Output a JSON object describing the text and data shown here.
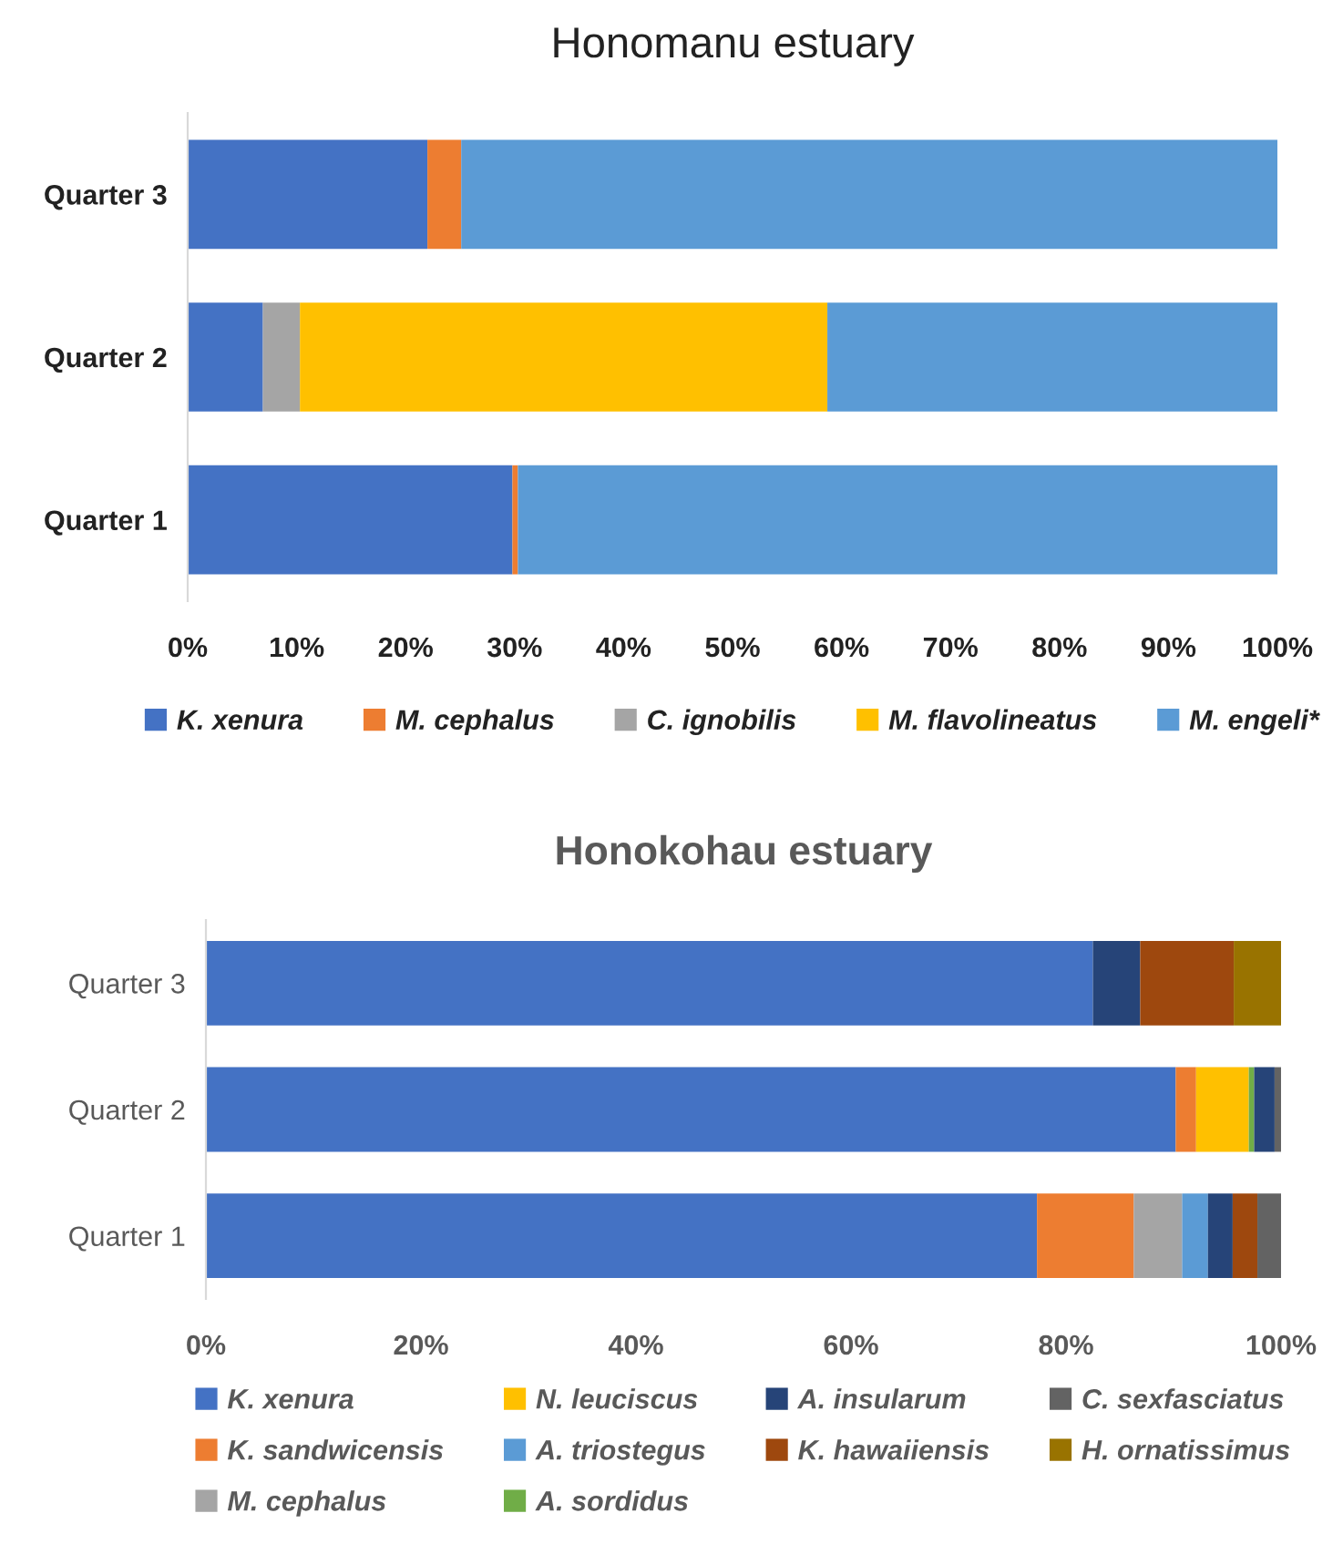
{
  "chart_data": [
    {
      "type": "bar",
      "title": "Honomanu estuary",
      "orientation": "horizontal",
      "stacked": true,
      "categories": [
        "Quarter 3",
        "Quarter 2",
        "Quarter 1"
      ],
      "series": [
        {
          "name": "K. xenura",
          "color": "#4472c4",
          "values": [
            22.0,
            6.9,
            29.8
          ]
        },
        {
          "name": "M. cephalus",
          "color": "#ed7d31",
          "values": [
            3.1,
            0,
            0.5
          ]
        },
        {
          "name": "C. ignobilis",
          "color": "#a5a5a5",
          "values": [
            0,
            3.4,
            0
          ]
        },
        {
          "name": "M. flavolineatus",
          "color": "#ffc000",
          "values": [
            0,
            48.4,
            0
          ]
        },
        {
          "name": "M. engeli*",
          "color": "#5b9bd5",
          "values": [
            74.9,
            41.3,
            69.7
          ]
        }
      ],
      "xlim": [
        0,
        100
      ],
      "xticks": [
        {
          "value": 0,
          "label": "0%"
        },
        {
          "value": 10,
          "label": "10%"
        },
        {
          "value": 20,
          "label": "20%"
        },
        {
          "value": 30,
          "label": "30%"
        },
        {
          "value": 40,
          "label": "40%"
        },
        {
          "value": 50,
          "label": "50%"
        },
        {
          "value": 60,
          "label": "60%"
        },
        {
          "value": 70,
          "label": "70%"
        },
        {
          "value": 80,
          "label": "80%"
        },
        {
          "value": 90,
          "label": "90%"
        },
        {
          "value": 100,
          "label": "100%"
        }
      ],
      "grid": false,
      "legend": "bottom"
    },
    {
      "type": "bar",
      "title": "Honokohau estuary",
      "orientation": "horizontal",
      "stacked": true,
      "categories": [
        "Quarter 3",
        "Quarter 2",
        "Quarter 1"
      ],
      "series": [
        {
          "name": "K. xenura",
          "color": "#4472c4",
          "values": [
            82.5,
            90.2,
            77.3
          ]
        },
        {
          "name": "K. sandwicensis",
          "color": "#ed7d31",
          "values": [
            0,
            1.9,
            9.0
          ]
        },
        {
          "name": "M. cephalus",
          "color": "#a5a5a5",
          "values": [
            0,
            0,
            4.5
          ]
        },
        {
          "name": "N. leuciscus",
          "color": "#ffc000",
          "values": [
            0,
            4.9,
            0
          ]
        },
        {
          "name": "A. triostegus",
          "color": "#5b9bd5",
          "values": [
            0,
            0,
            2.4
          ]
        },
        {
          "name": "A. sordidus",
          "color": "#70ad47",
          "values": [
            0,
            0.5,
            0
          ]
        },
        {
          "name": "A. insularum",
          "color": "#264478",
          "values": [
            4.4,
            1.9,
            2.3
          ]
        },
        {
          "name": "K. hawaiiensis",
          "color": "#9e480e",
          "values": [
            8.7,
            0,
            2.3
          ]
        },
        {
          "name": "C. sexfasciatus",
          "color": "#636363",
          "values": [
            0,
            0.6,
            2.2
          ]
        },
        {
          "name": "H. ornatissimus",
          "color": "#997300",
          "values": [
            4.4,
            0,
            0
          ]
        }
      ],
      "xlim": [
        0,
        100
      ],
      "xticks": [
        {
          "value": 0,
          "label": "0%"
        },
        {
          "value": 20,
          "label": "20%"
        },
        {
          "value": 40,
          "label": "40%"
        },
        {
          "value": 60,
          "label": "60%"
        },
        {
          "value": 80,
          "label": "80%"
        },
        {
          "value": 100,
          "label": "100%"
        }
      ],
      "grid": false,
      "legend": "bottom"
    }
  ]
}
